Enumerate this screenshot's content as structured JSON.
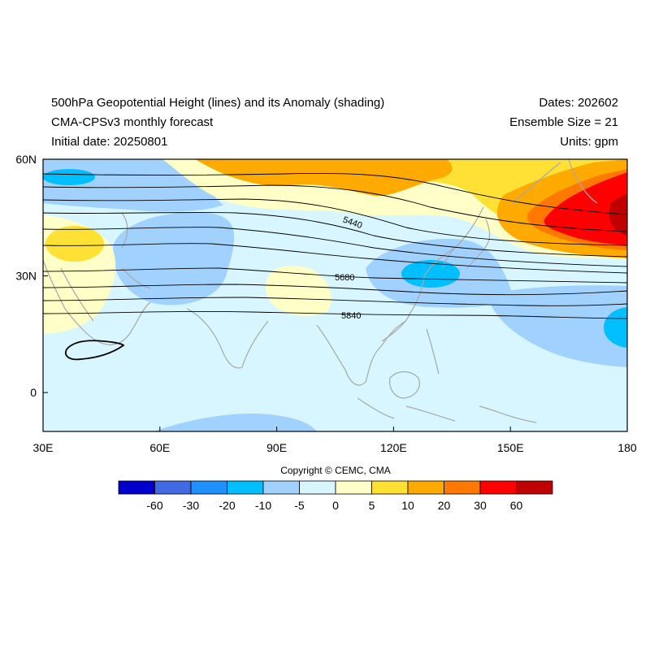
{
  "header": {
    "title": "500hPa Geopotential Height (lines) and its Anomaly (shading)",
    "model": "CMA-CPSv3 monthly forecast",
    "initial_date": "Initial date: 20250801",
    "dates": "Dates: 202602",
    "ensemble": "Ensemble Size = 21",
    "units": "Units: gpm"
  },
  "map": {
    "lon_range": [
      30,
      180
    ],
    "lat_range": [
      -10,
      60
    ],
    "lon_ticks": [
      "30E",
      "60E",
      "90E",
      "120E",
      "150E",
      "180"
    ],
    "lat_ticks": [
      "60N",
      "30N",
      "0"
    ],
    "contour_labels": [
      "5440",
      "5680",
      "5840"
    ]
  },
  "legend": {
    "colors": [
      "#0000cd",
      "#4169e1",
      "#1e90ff",
      "#00bfff",
      "#a0d1ff",
      "#d7f6ff",
      "#ffffc8",
      "#ffe034",
      "#ffaa00",
      "#ff7800",
      "#ff0000",
      "#c00000"
    ],
    "labels": [
      "-60",
      "-30",
      "-20",
      "-10",
      "-5",
      "0",
      "5",
      "10",
      "20",
      "30",
      "60"
    ]
  },
  "copyright": "Copyright © CEMC, CMA"
}
